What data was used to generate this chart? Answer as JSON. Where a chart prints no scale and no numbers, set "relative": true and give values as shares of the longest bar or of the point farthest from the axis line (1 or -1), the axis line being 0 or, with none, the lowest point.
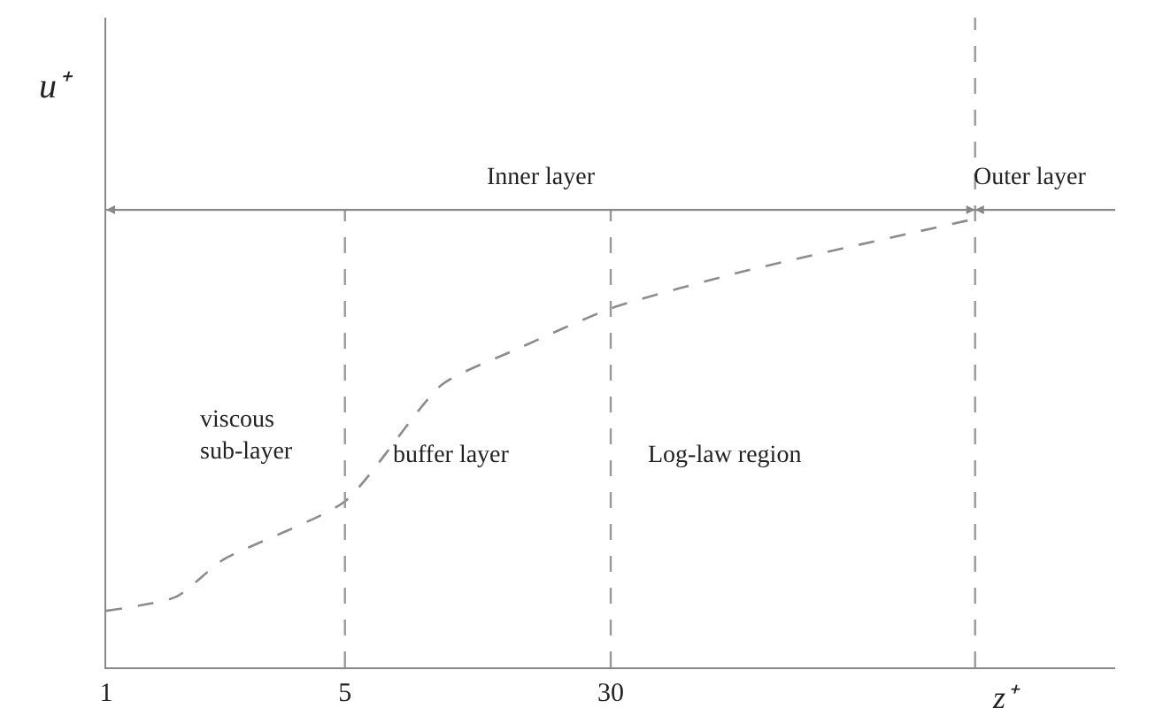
{
  "chart_data": {
    "type": "line",
    "relative": true,
    "log": "x",
    "xlabel": "z⁺",
    "ylabel": "u⁺",
    "x": [
      1,
      1.6,
      2.2,
      5,
      9.6,
      16,
      30,
      71,
      350
    ],
    "series": [
      {
        "color": "#8c8c8c",
        "values": [
          0.126,
          0.157,
          0.24,
          0.37,
          0.63,
          0.71,
          0.8,
          0.88,
          1.0
        ]
      }
    ],
    "xlim": [
      1,
      900
    ],
    "xticks": [
      1,
      5,
      30
    ],
    "line_style": "dashed",
    "marker": "none",
    "ref_lines": [
      {
        "axis": "x",
        "value": 5,
        "color": "#999999",
        "line_style": "dashed"
      },
      {
        "axis": "x",
        "value": 30,
        "color": "#999999",
        "line_style": "dashed"
      },
      {
        "axis": "x",
        "value": 350,
        "color": "#999999",
        "line_style": "dashed"
      },
      {
        "axis": "y",
        "value": 1.02,
        "color": "#888888",
        "line_style": "solid"
      }
    ],
    "annotations": [
      "Inner layer",
      "Outer layer",
      "viscous\nsub-layer",
      "buffer layer",
      "Log-law region"
    ]
  }
}
